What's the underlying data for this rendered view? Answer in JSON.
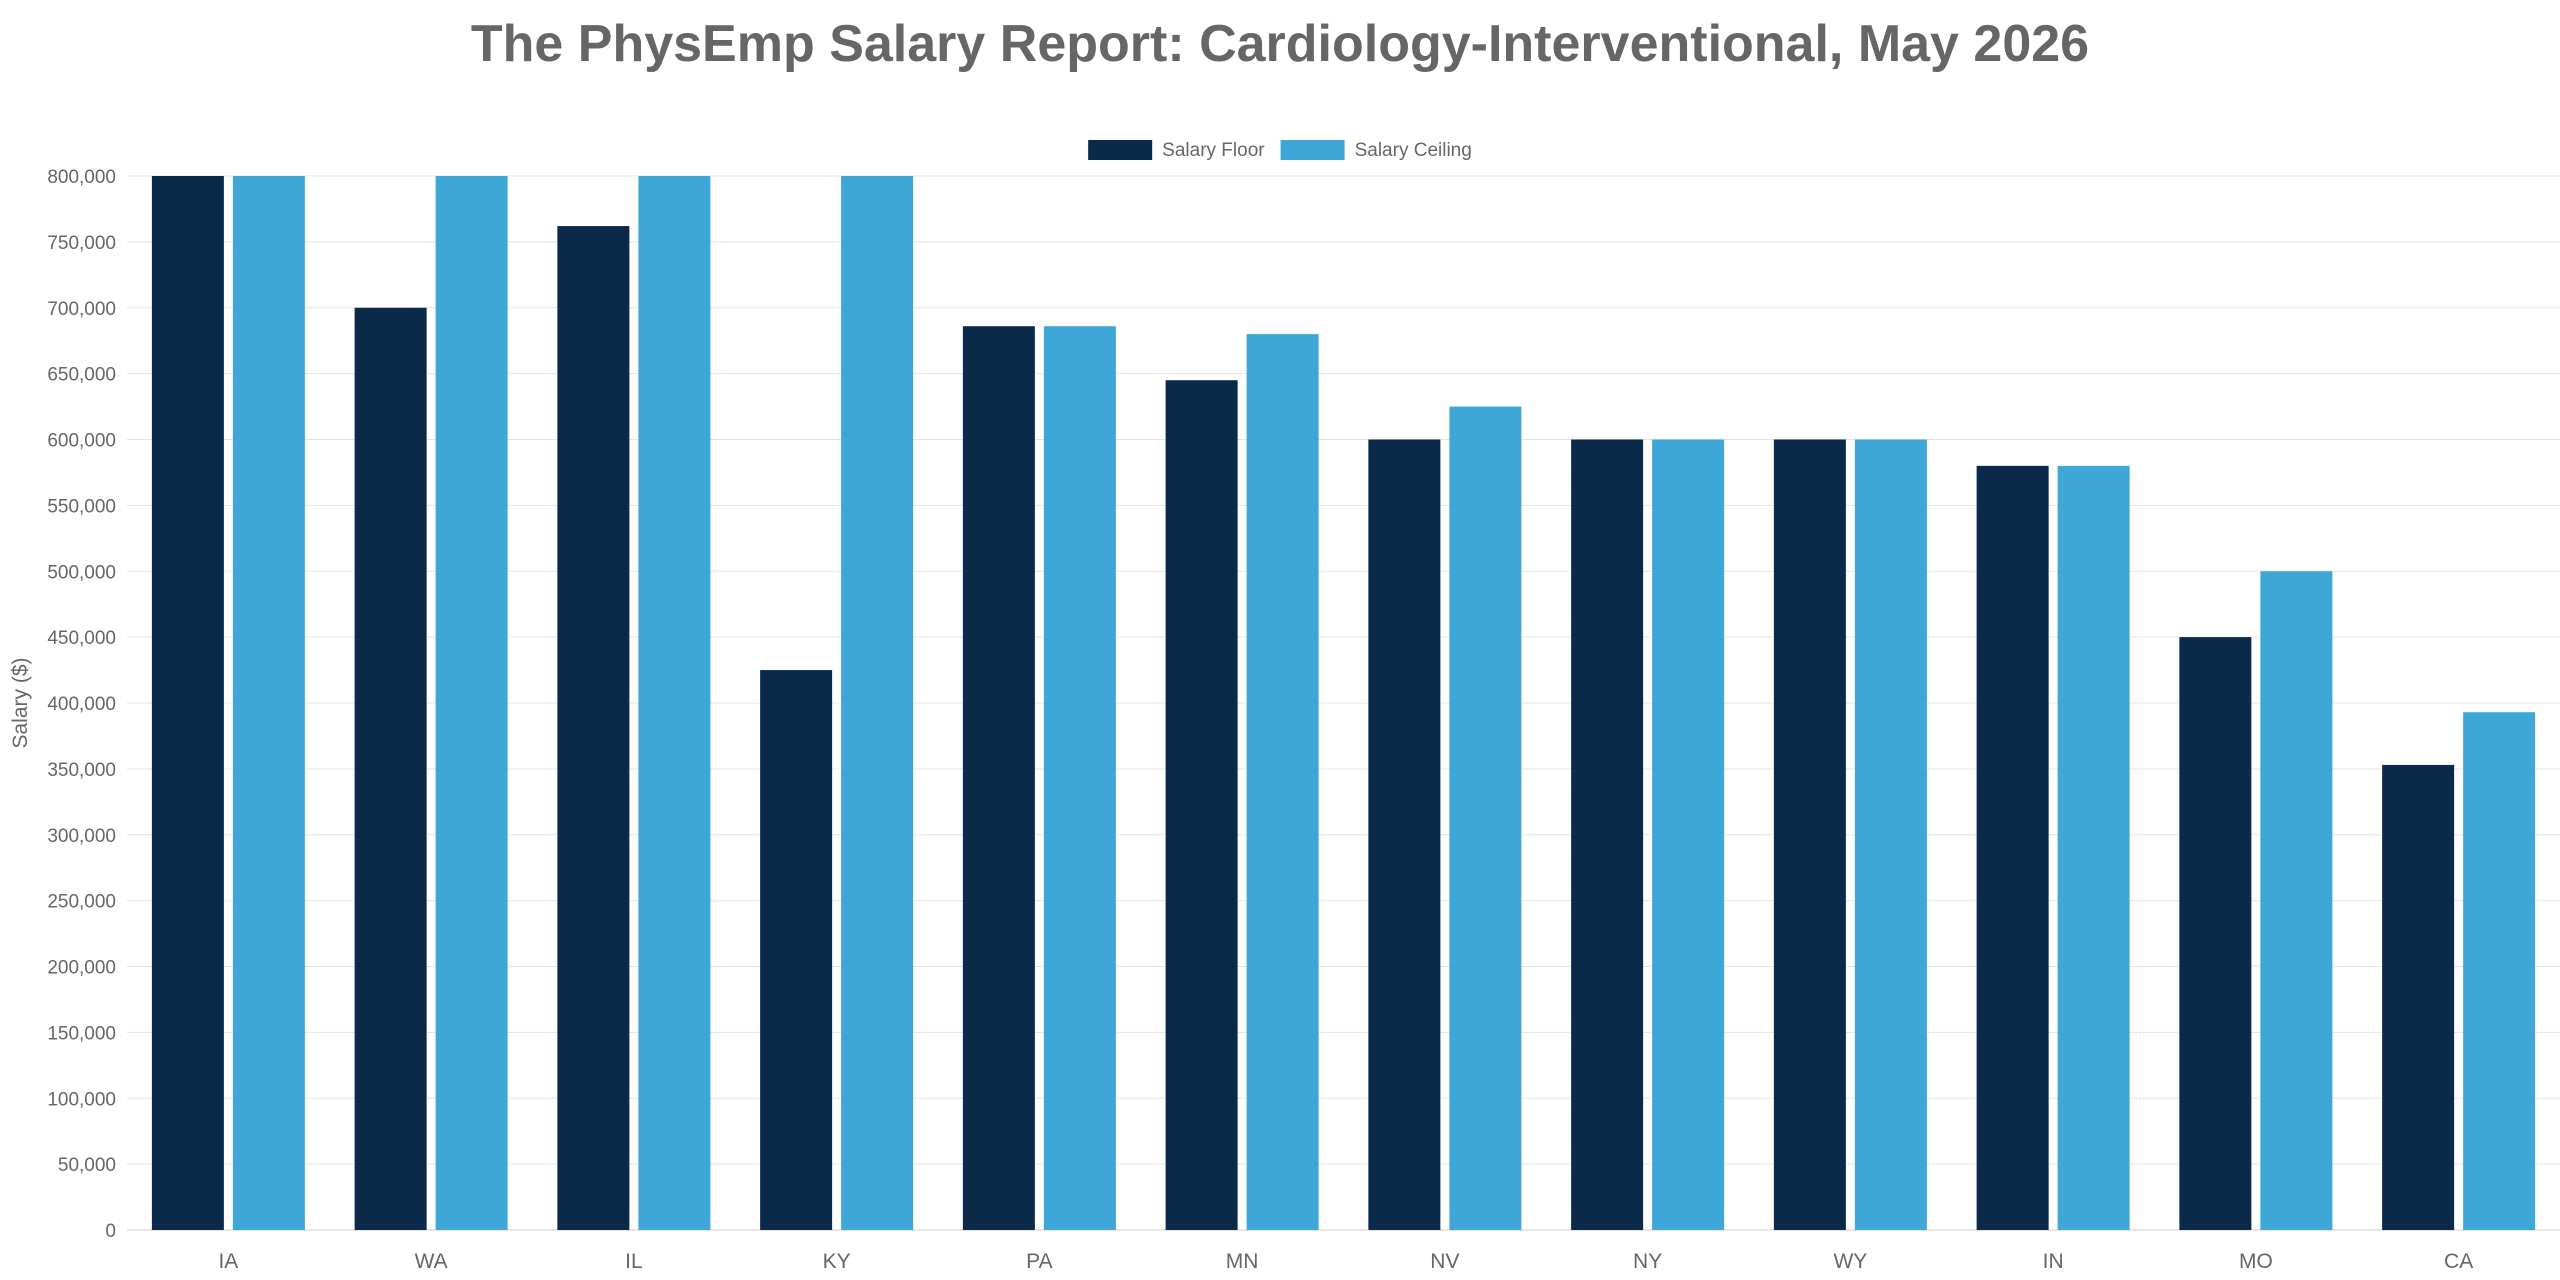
{
  "chart_data": {
    "type": "bar",
    "title": "The PhysEmp Salary Report: Cardiology-Interventional, May 2026",
    "xlabel": "",
    "ylabel": "Salary ($)",
    "ylim": [
      0,
      800000
    ],
    "yticks": [
      0,
      50000,
      100000,
      150000,
      200000,
      250000,
      300000,
      350000,
      400000,
      450000,
      500000,
      550000,
      600000,
      650000,
      700000,
      750000,
      800000
    ],
    "ytick_labels": [
      "0",
      "50,000",
      "100,000",
      "150,000",
      "200,000",
      "250,000",
      "300,000",
      "350,000",
      "400,000",
      "450,000",
      "500,000",
      "550,000",
      "600,000",
      "650,000",
      "700,000",
      "750,000",
      "800,000"
    ],
    "grid": true,
    "legend_position": "top-center",
    "categories": [
      "IA",
      "WA",
      "IL",
      "KY",
      "PA",
      "MN",
      "NV",
      "NY",
      "WY",
      "IN",
      "MO",
      "CA"
    ],
    "series": [
      {
        "name": "Salary Floor",
        "color": "#0b2a4a",
        "values": [
          800000,
          700000,
          762000,
          425000,
          686000,
          645000,
          600000,
          600000,
          600000,
          580000,
          450000,
          353000
        ]
      },
      {
        "name": "Salary Ceiling",
        "color": "#3fa7d8",
        "values": [
          800000,
          800000,
          800000,
          800000,
          686000,
          680000,
          625000,
          600000,
          600000,
          580000,
          500000,
          393000
        ]
      }
    ]
  }
}
